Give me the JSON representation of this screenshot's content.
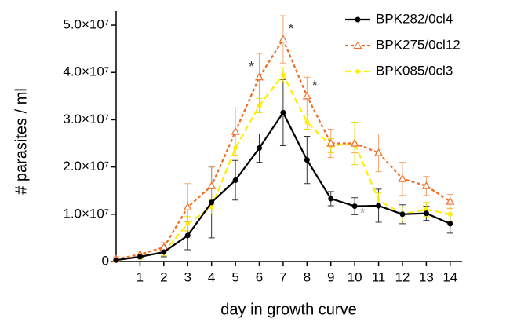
{
  "chart_data": {
    "type": "line",
    "x_label": "day in growth curve",
    "y_label": "# parasites / ml",
    "x": [
      0,
      1,
      2,
      3,
      4,
      5,
      6,
      7,
      8,
      9,
      10,
      11,
      12,
      13,
      14
    ],
    "xlim": [
      0,
      14.5
    ],
    "xticks": [
      1,
      2,
      3,
      4,
      5,
      6,
      7,
      8,
      9,
      10,
      11,
      12,
      13,
      14
    ],
    "ylim": [
      0,
      53000000
    ],
    "yticks": [
      0,
      {
        "value": 10000000,
        "label": "1.0×10⁷"
      },
      {
        "value": 20000000,
        "label": "2.0×10⁷"
      },
      {
        "value": 30000000,
        "label": "3.0×10⁷"
      },
      {
        "value": 40000000,
        "label": "4.0×10⁷"
      },
      {
        "value": 50000000,
        "label": "5.0×10⁷"
      }
    ],
    "legend": "top-right",
    "series": [
      {
        "name": "BPK282/0cl4",
        "color": "#000000",
        "error_color": "#333333",
        "dash": "none",
        "marker": "circle",
        "values": [
          300000,
          1000000,
          2000000,
          5500000,
          12500000,
          17200000,
          24000000,
          31500000,
          21500000,
          13300000,
          11700000,
          11800000,
          10000000,
          10200000,
          8000000
        ],
        "errors": [
          200000,
          500000,
          1000000,
          3000000,
          7500000,
          4200000,
          3000000,
          7000000,
          5000000,
          1500000,
          1800000,
          3500000,
          2000000,
          1500000,
          2000000
        ]
      },
      {
        "name": "BPK275/0cl12",
        "color": "#f26b21",
        "error_color": "#f5a36b",
        "dash": "4 3",
        "marker": "triangle",
        "values": [
          500000,
          1500000,
          3000000,
          11500000,
          16000000,
          27500000,
          39000000,
          47000000,
          35000000,
          25000000,
          25000000,
          23000000,
          17500000,
          16000000,
          12700000
        ],
        "errors": [
          500000,
          700000,
          1000000,
          5000000,
          4000000,
          5000000,
          5000000,
          5000000,
          4000000,
          3000000,
          2000000,
          4000000,
          3500000,
          2000000,
          1500000
        ]
      },
      {
        "name": "BPK085/0cl3",
        "color": "#ffee00",
        "error_color": "#e8d800",
        "dash": "8 4",
        "marker": "square",
        "values": [
          300000,
          1000000,
          2000000,
          8000000,
          11500000,
          24000000,
          33000000,
          39500000,
          29500000,
          24500000,
          25000000,
          13000000,
          10000000,
          11000000,
          10000000
        ],
        "errors": [
          200000,
          500000,
          800000,
          1500000,
          1500000,
          1500000,
          1500000,
          1500000,
          1500000,
          1500000,
          4500000,
          1500000,
          1500000,
          1500000,
          1500000
        ]
      }
    ],
    "annotations": [
      {
        "text": "*",
        "x": 6,
        "color": "#333333"
      },
      {
        "text": "*",
        "x": 7,
        "color": "#333333"
      },
      {
        "text": "*",
        "x": 8,
        "color": "#333333"
      },
      {
        "text": "*",
        "x": 10,
        "color": "#999999"
      }
    ]
  }
}
